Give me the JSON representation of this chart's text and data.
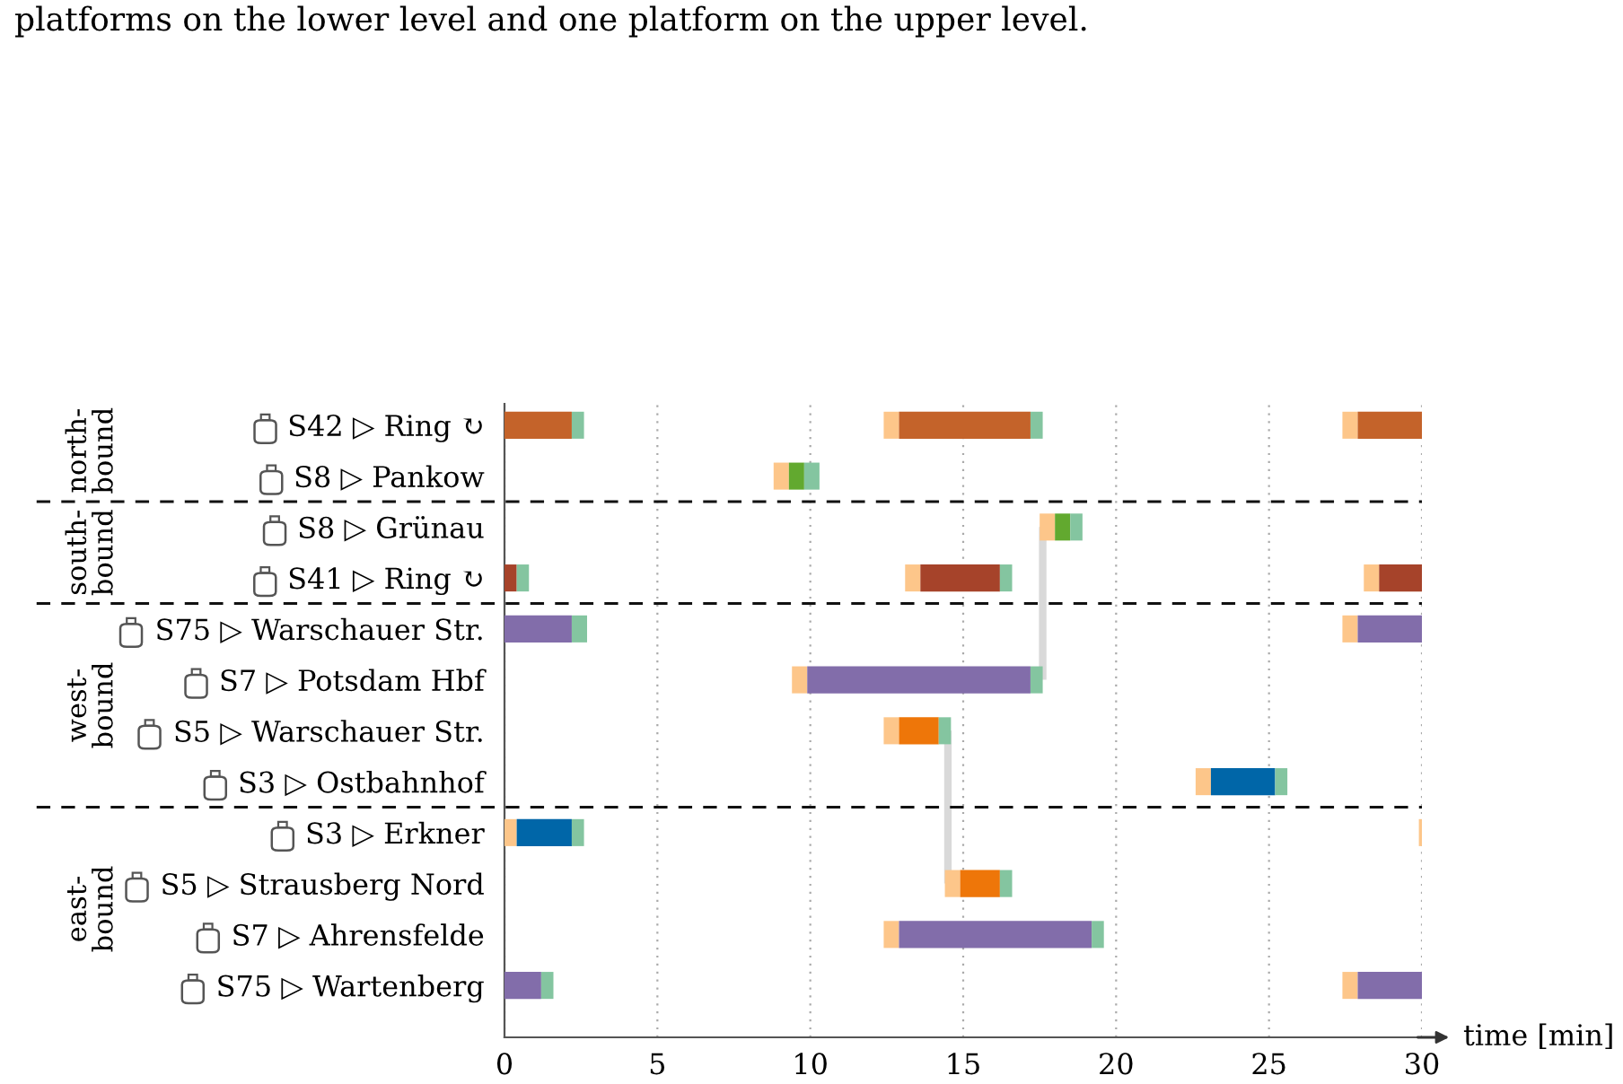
{
  "chart_data": {
    "type": "bar",
    "orientation": "horizontal",
    "annotations": [
      "platforms on the lower level and one platform on the upper level.",
      "north-\nbound",
      "south-\nbound",
      "west-\nbound",
      "east-\nbound"
    ],
    "xlabel": "time [min]",
    "categories": [
      "S42 ▷ Ring ↻",
      "S8 ▷ Pankow",
      "S8 ▷ Grünau",
      "S41 ▷ Ring ↻",
      "S75 ▷ Warschauer Str.",
      "S7 ▷ Potsdam Hbf",
      "S5 ▷ Warschauer Str.",
      "S3 ▷ Ostbahnhof",
      "S3 ▷ Erkner",
      "S5 ▷ Strausberg Nord",
      "S7 ▷ Ahrensfelde",
      "S75 ▷ Wartenberg"
    ],
    "xlim": [
      0,
      30
    ],
    "xticks": [
      0,
      5,
      10,
      15,
      20,
      25,
      30
    ],
    "grid": "x",
    "series": [
      {
        "color": "#fdc68a",
        "base": [
          null,
          null,
          null,
          null,
          null,
          null,
          null,
          null,
          0,
          null,
          null,
          null
        ],
        "values": [
          null,
          null,
          null,
          null,
          null,
          null,
          null,
          null,
          0.4,
          null,
          null,
          null
        ]
      },
      {
        "colors": [
          "#c4632a",
          null,
          null,
          "#a6432a",
          "#826daa",
          null,
          null,
          null,
          "#0066a8",
          null,
          null,
          "#826daa"
        ],
        "base": [
          0,
          null,
          null,
          0,
          0,
          null,
          null,
          null,
          0.4,
          null,
          null,
          0
        ],
        "values": [
          2.2,
          null,
          null,
          0.4,
          2.2,
          null,
          null,
          null,
          1.8,
          null,
          null,
          1.2
        ]
      },
      {
        "color": "#84c5a0",
        "base": [
          2.2,
          null,
          null,
          0.4,
          2.2,
          null,
          null,
          null,
          2.2,
          null,
          null,
          1.2
        ],
        "values": [
          0.4,
          null,
          null,
          0.4,
          0.5,
          null,
          null,
          null,
          0.4,
          null,
          null,
          0.4
        ]
      },
      {
        "color": "#fdc68a",
        "base": [
          12.4,
          8.8,
          17.5,
          13.1,
          null,
          9.4,
          12.4,
          22.6,
          null,
          14.4,
          12.4,
          null
        ],
        "values": [
          0.5,
          0.5,
          0.5,
          0.5,
          null,
          0.5,
          0.5,
          0.5,
          null,
          0.5,
          0.5,
          null
        ]
      },
      {
        "colors": [
          "#c4632a",
          "#62a92f",
          "#62a92f",
          "#a6432a",
          null,
          "#826daa",
          "#ee7609",
          "#0066a8",
          null,
          "#ee7609",
          "#826daa",
          null
        ],
        "base": [
          12.9,
          9.3,
          18.0,
          13.6,
          null,
          9.9,
          12.9,
          23.1,
          null,
          14.9,
          12.9,
          null
        ],
        "values": [
          4.3,
          0.5,
          0.5,
          2.6,
          null,
          7.3,
          1.3,
          2.1,
          null,
          1.3,
          6.3,
          null
        ]
      },
      {
        "color": "#84c5a0",
        "base": [
          17.2,
          9.8,
          18.5,
          16.2,
          null,
          17.2,
          14.2,
          25.2,
          null,
          16.2,
          19.2,
          null
        ],
        "values": [
          0.4,
          0.5,
          0.4,
          0.4,
          null,
          0.4,
          0.4,
          0.4,
          null,
          0.4,
          0.4,
          null
        ]
      },
      {
        "color": "#fdc68a",
        "base": [
          27.4,
          null,
          null,
          28.1,
          27.4,
          null,
          null,
          null,
          29.9,
          null,
          null,
          27.4
        ],
        "values": [
          0.5,
          null,
          null,
          0.5,
          0.5,
          null,
          null,
          null,
          0.1,
          null,
          null,
          0.5
        ]
      },
      {
        "colors": [
          "#c4632a",
          null,
          null,
          "#a6432a",
          "#826daa",
          null,
          null,
          null,
          null,
          null,
          null,
          "#826daa"
        ],
        "base": [
          27.9,
          null,
          null,
          28.6,
          27.9,
          null,
          null,
          null,
          null,
          null,
          null,
          27.9
        ],
        "values": [
          2.1,
          null,
          null,
          1.4,
          2.1,
          null,
          null,
          null,
          null,
          null,
          null,
          2.1
        ]
      },
      {
        "type": "line",
        "color": "#d9d9d9",
        "values": [
          null,
          null,
          17.6,
          null,
          null,
          17.6,
          null,
          null,
          null,
          null,
          null,
          null
        ]
      },
      {
        "type": "line",
        "color": "#d9d9d9",
        "values": [
          null,
          null,
          null,
          null,
          null,
          null,
          14.5,
          null,
          null,
          14.5,
          null,
          null
        ]
      }
    ]
  }
}
